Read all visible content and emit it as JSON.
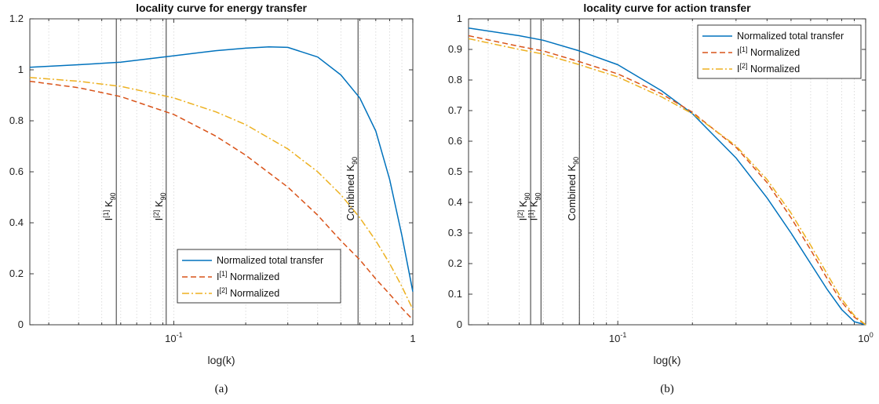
{
  "chart_data": [
    {
      "id": "energy",
      "type": "line",
      "title": "locality curve for energy transfer",
      "xlabel": "log(k)",
      "ylabel": "",
      "caption": "(a)",
      "xscale": "log",
      "xlim": [
        0.025,
        1
      ],
      "ylim": [
        0,
        1.2
      ],
      "xticks": [
        {
          "value": 0.1,
          "base": "10",
          "exp": "-1"
        },
        {
          "value": 1,
          "base": "1",
          "exp": ""
        }
      ],
      "yticks": [
        0,
        0.2,
        0.4,
        0.6,
        0.8,
        1,
        1.2
      ],
      "grid": "x-minor",
      "legend_position": "lower-right",
      "series": [
        {
          "name": "Normalized total transfer",
          "color": "#0072BD",
          "dash": "solid",
          "x": [
            0.025,
            0.04,
            0.06,
            0.1,
            0.15,
            0.2,
            0.25,
            0.3,
            0.4,
            0.5,
            0.6,
            0.7,
            0.8,
            0.9,
            1.0
          ],
          "y": [
            1.01,
            1.02,
            1.03,
            1.055,
            1.075,
            1.085,
            1.09,
            1.088,
            1.05,
            0.98,
            0.89,
            0.76,
            0.57,
            0.35,
            0.13
          ]
        },
        {
          "name": "I[1] Normalized",
          "legend_base": "I",
          "legend_sup": "[1]",
          "legend_tail": " Normalized",
          "color": "#D95319",
          "dash": "dashed",
          "x": [
            0.025,
            0.04,
            0.06,
            0.1,
            0.15,
            0.2,
            0.3,
            0.4,
            0.5,
            0.6,
            0.7,
            0.8,
            0.9,
            1.0
          ],
          "y": [
            0.955,
            0.93,
            0.895,
            0.825,
            0.74,
            0.665,
            0.54,
            0.43,
            0.33,
            0.255,
            0.18,
            0.12,
            0.065,
            0.02
          ]
        },
        {
          "name": "I[2] Normalized",
          "legend_base": "I",
          "legend_sup": "[2]",
          "legend_tail": " Normalized",
          "color": "#EDB120",
          "dash": "dashdot",
          "x": [
            0.025,
            0.04,
            0.06,
            0.1,
            0.15,
            0.2,
            0.3,
            0.4,
            0.5,
            0.6,
            0.7,
            0.8,
            0.9,
            1.0
          ],
          "y": [
            0.97,
            0.955,
            0.935,
            0.89,
            0.835,
            0.785,
            0.69,
            0.6,
            0.51,
            0.42,
            0.33,
            0.24,
            0.15,
            0.06
          ]
        }
      ],
      "vlines": [
        {
          "x": 0.0575,
          "label_pre": "I",
          "label_sup": "[1]",
          "label_mid": " K",
          "label_sub": "90"
        },
        {
          "x": 0.093,
          "label_pre": "I",
          "label_sup": "[2]",
          "label_mid": " K",
          "label_sub": "90"
        },
        {
          "x": 0.59,
          "label_pre": "Combined K",
          "label_sup": "",
          "label_mid": "",
          "label_sub": "90"
        }
      ]
    },
    {
      "id": "action",
      "type": "line",
      "title": "locality curve for action transfer",
      "xlabel": "log(k)",
      "ylabel": "",
      "caption": "(b)",
      "xscale": "log",
      "xlim": [
        0.025,
        1
      ],
      "ylim": [
        0,
        1
      ],
      "xticks": [
        {
          "value": 0.1,
          "base": "10",
          "exp": "-1"
        },
        {
          "value": 1,
          "base": "10",
          "exp": "0"
        }
      ],
      "yticks": [
        0,
        0.1,
        0.2,
        0.3,
        0.4,
        0.5,
        0.6,
        0.7,
        0.8,
        0.9,
        1
      ],
      "grid": "x-minor",
      "legend_position": "top-right",
      "series": [
        {
          "name": "Normalized total transfer",
          "color": "#0072BD",
          "dash": "solid",
          "x": [
            0.025,
            0.04,
            0.05,
            0.07,
            0.1,
            0.15,
            0.2,
            0.3,
            0.4,
            0.5,
            0.6,
            0.7,
            0.8,
            0.9,
            1.0
          ],
          "y": [
            0.97,
            0.945,
            0.93,
            0.895,
            0.85,
            0.765,
            0.69,
            0.545,
            0.415,
            0.3,
            0.2,
            0.115,
            0.05,
            0.01,
            0.0
          ]
        },
        {
          "name": "I[1] Normalized",
          "legend_base": "I",
          "legend_sup": "[1]",
          "legend_tail": " Normalized",
          "color": "#D95319",
          "dash": "dashed",
          "x": [
            0.025,
            0.04,
            0.05,
            0.07,
            0.1,
            0.15,
            0.2,
            0.3,
            0.4,
            0.5,
            0.6,
            0.7,
            0.8,
            0.9,
            1.0
          ],
          "y": [
            0.945,
            0.91,
            0.895,
            0.86,
            0.82,
            0.755,
            0.695,
            0.58,
            0.465,
            0.35,
            0.245,
            0.15,
            0.075,
            0.025,
            0.0
          ]
        },
        {
          "name": "I[2] Normalized",
          "legend_base": "I",
          "legend_sup": "[2]",
          "legend_tail": " Normalized",
          "color": "#EDB120",
          "dash": "dashdot",
          "x": [
            0.025,
            0.04,
            0.05,
            0.07,
            0.1,
            0.15,
            0.2,
            0.3,
            0.4,
            0.5,
            0.6,
            0.7,
            0.8,
            0.9,
            1.0
          ],
          "y": [
            0.935,
            0.9,
            0.885,
            0.85,
            0.81,
            0.745,
            0.69,
            0.585,
            0.475,
            0.365,
            0.26,
            0.165,
            0.085,
            0.03,
            0.0
          ]
        }
      ],
      "vlines": [
        {
          "x": 0.0445,
          "label_pre": "I",
          "label_sup": "[2]",
          "label_mid": " K",
          "label_sub": "90"
        },
        {
          "x": 0.049,
          "label_pre": "I",
          "label_sup": "[1]",
          "label_mid": " K",
          "label_sub": "90"
        },
        {
          "x": 0.07,
          "label_pre": "Combined K",
          "label_sup": "",
          "label_mid": "",
          "label_sub": "90"
        }
      ]
    }
  ]
}
